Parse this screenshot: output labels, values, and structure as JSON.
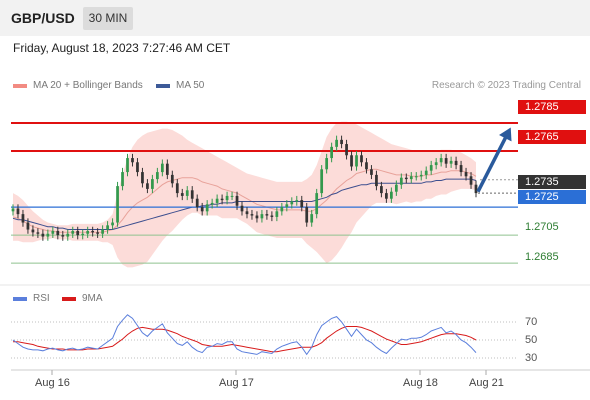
{
  "header": {
    "symbol": "GBP/USD",
    "timeframe": "30 MIN"
  },
  "timestamp": "Friday, August 18, 2023 7:27:46 AM CET",
  "legend": {
    "ma20_label": "MA 20 + Bollinger Bands",
    "ma50_label": "MA 50",
    "credit": "Research © 2023 Trading Central",
    "rsi_label": "RSI",
    "rsi_ma_label": "9MA"
  },
  "colors": {
    "up": "#33994d",
    "down": "#333333",
    "band": "#fbd0cc",
    "ma20": "#e8a29a",
    "ma50": "#3d4f8f",
    "resistance": "#e01010",
    "support": "#2b6fd6",
    "target": "#2e7d32",
    "arrow": "#2a5a9c",
    "rsi": "#5b7fdc",
    "rsi_ma": "#d81b1b"
  },
  "price_labels": {
    "r2": "1.2785",
    "r1": "1.2765",
    "last": "1.2735",
    "pivot": "1.2725",
    "s1": "1.2705",
    "s2": "1.2685"
  },
  "rsi_levels": [
    "70",
    "50",
    "30"
  ],
  "x_labels": [
    "Aug 16",
    "Aug 17",
    "Aug 18",
    "Aug 21"
  ],
  "chart_data": {
    "type": "candlestick",
    "ylim": [
      1.2673,
      1.2805
    ],
    "xlabels": [
      "Aug 16",
      "Aug 17",
      "Aug 18",
      "Aug 21"
    ],
    "levels": {
      "resistance": [
        1.2785,
        1.2765
      ],
      "pivot": 1.2725,
      "support": [
        1.2705,
        1.2685
      ],
      "last": 1.2735
    },
    "closes": [
      1.2724,
      1.272,
      1.2714,
      1.2709,
      1.2707,
      1.2706,
      1.2704,
      1.2706,
      1.2708,
      1.2705,
      1.2704,
      1.2706,
      1.2708,
      1.2705,
      1.2706,
      1.2708,
      1.2707,
      1.2706,
      1.2709,
      1.2712,
      1.2714,
      1.274,
      1.275,
      1.276,
      1.2757,
      1.275,
      1.2742,
      1.2738,
      1.2745,
      1.275,
      1.2756,
      1.2748,
      1.2742,
      1.2735,
      1.2733,
      1.2737,
      1.2731,
      1.2725,
      1.2722,
      1.2727,
      1.2728,
      1.2731,
      1.273,
      1.2733,
      1.2733,
      1.2726,
      1.2722,
      1.272,
      1.2719,
      1.2717,
      1.272,
      1.2719,
      1.2718,
      1.2722,
      1.2725,
      1.2727,
      1.2729,
      1.273,
      1.2725,
      1.2714,
      1.272,
      1.2735,
      1.2752,
      1.276,
      1.2768,
      1.2773,
      1.277,
      1.2762,
      1.2754,
      1.2762,
      1.2757,
      1.2752,
      1.2748,
      1.274,
      1.2735,
      1.2731,
      1.2736,
      1.2741,
      1.2746,
      1.2745,
      1.2747,
      1.2747,
      1.2748,
      1.2751,
      1.2755,
      1.2757,
      1.276,
      1.2756,
      1.2758,
      1.2755,
      1.275,
      1.2747,
      1.2741,
      1.2735
    ],
    "opens": [
      1.2722,
      1.2724,
      1.272,
      1.2714,
      1.2709,
      1.2707,
      1.2706,
      1.2704,
      1.2706,
      1.2708,
      1.2705,
      1.2704,
      1.2706,
      1.2708,
      1.2705,
      1.2706,
      1.2708,
      1.2707,
      1.2706,
      1.2709,
      1.2712,
      1.2714,
      1.274,
      1.275,
      1.276,
      1.2757,
      1.275,
      1.2742,
      1.2738,
      1.2745,
      1.275,
      1.2756,
      1.2748,
      1.2742,
      1.2735,
      1.2733,
      1.2737,
      1.2731,
      1.2725,
      1.2722,
      1.2727,
      1.2728,
      1.2731,
      1.273,
      1.2733,
      1.2733,
      1.2726,
      1.2722,
      1.272,
      1.2719,
      1.2717,
      1.272,
      1.2719,
      1.2718,
      1.2722,
      1.2725,
      1.2727,
      1.2729,
      1.273,
      1.2725,
      1.2714,
      1.272,
      1.2735,
      1.2752,
      1.276,
      1.2768,
      1.2773,
      1.277,
      1.2762,
      1.2754,
      1.2762,
      1.2757,
      1.2752,
      1.2748,
      1.274,
      1.2735,
      1.2731,
      1.2736,
      1.2741,
      1.2746,
      1.2745,
      1.2747,
      1.2747,
      1.2748,
      1.2751,
      1.2755,
      1.2757,
      1.276,
      1.2756,
      1.2758,
      1.2755,
      1.275,
      1.2747,
      1.2741
    ],
    "ma20": [
      1.2718,
      1.2717,
      1.2715,
      1.2713,
      1.2711,
      1.271,
      1.2709,
      1.2708,
      1.2708,
      1.2707,
      1.2707,
      1.2707,
      1.2707,
      1.2707,
      1.2707,
      1.2707,
      1.2707,
      1.2707,
      1.2707,
      1.2708,
      1.2709,
      1.2712,
      1.2716,
      1.2721,
      1.2725,
      1.2728,
      1.273,
      1.2732,
      1.2735,
      1.2738,
      1.2741,
      1.2743,
      1.2744,
      1.2745,
      1.2746,
      1.2746,
      1.2746,
      1.2745,
      1.2743,
      1.2742,
      1.2741,
      1.274,
      1.2738,
      1.2737,
      1.2736,
      1.2735,
      1.2733,
      1.2731,
      1.2729,
      1.2727,
      1.2726,
      1.2725,
      1.2724,
      1.2723,
      1.2723,
      1.2723,
      1.2723,
      1.2723,
      1.2723,
      1.2722,
      1.2722,
      1.2724,
      1.2727,
      1.273,
      1.2734,
      1.2738,
      1.2741,
      1.2744,
      1.2746,
      1.2749,
      1.275,
      1.2751,
      1.2752,
      1.2752,
      1.2751,
      1.275,
      1.2749,
      1.2748,
      1.2748,
      1.2748,
      1.2747,
      1.2747,
      1.2747,
      1.2748,
      1.2748,
      1.2749,
      1.275,
      1.275,
      1.2751,
      1.2751,
      1.2751,
      1.275,
      1.2749,
      1.2747
    ],
    "bb_upper": [
      1.2735,
      1.2733,
      1.273,
      1.2726,
      1.2722,
      1.2719,
      1.2716,
      1.2714,
      1.2713,
      1.2712,
      1.2712,
      1.2712,
      1.2713,
      1.2713,
      1.2713,
      1.2713,
      1.2713,
      1.2713,
      1.2714,
      1.2716,
      1.272,
      1.2735,
      1.2748,
      1.276,
      1.2768,
      1.2773,
      1.2776,
      1.2778,
      1.2779,
      1.278,
      1.2781,
      1.2781,
      1.278,
      1.2778,
      1.2776,
      1.2773,
      1.2771,
      1.2769,
      1.2767,
      1.2765,
      1.2763,
      1.2761,
      1.2759,
      1.2757,
      1.2755,
      1.2753,
      1.2751,
      1.2749,
      1.2748,
      1.2747,
      1.2746,
      1.2745,
      1.2744,
      1.2743,
      1.2743,
      1.2743,
      1.2743,
      1.2743,
      1.2743,
      1.2745,
      1.2748,
      1.2755,
      1.2765,
      1.2775,
      1.2781,
      1.2785,
      1.2786,
      1.2786,
      1.2785,
      1.2784,
      1.2782,
      1.278,
      1.2778,
      1.2776,
      1.2774,
      1.2772,
      1.277,
      1.2769,
      1.2768,
      1.2767,
      1.2766,
      1.2765,
      1.2765,
      1.2765,
      1.2765,
      1.2765,
      1.2766,
      1.2766,
      1.2766,
      1.2765,
      1.2764,
      1.2762,
      1.276,
      1.2757
    ],
    "bb_lower": [
      1.2701,
      1.2701,
      1.27,
      1.27,
      1.27,
      1.2701,
      1.2702,
      1.2702,
      1.2703,
      1.2702,
      1.2702,
      1.2702,
      1.2701,
      1.2701,
      1.2701,
      1.2701,
      1.2701,
      1.2701,
      1.27,
      1.27,
      1.2698,
      1.2689,
      1.2684,
      1.2682,
      1.2682,
      1.2683,
      1.2684,
      1.2686,
      1.2691,
      1.2696,
      1.2701,
      1.2705,
      1.2708,
      1.2712,
      1.2716,
      1.2719,
      1.2721,
      1.2721,
      1.2719,
      1.2719,
      1.2719,
      1.2719,
      1.2717,
      1.2717,
      1.2717,
      1.2717,
      1.2715,
      1.2713,
      1.271,
      1.2707,
      1.2706,
      1.2705,
      1.2704,
      1.2703,
      1.2703,
      1.2703,
      1.2703,
      1.2703,
      1.2703,
      1.2699,
      1.2696,
      1.2693,
      1.2689,
      1.2685,
      1.2687,
      1.2691,
      1.2696,
      1.2702,
      1.2707,
      1.2714,
      1.2718,
      1.2722,
      1.2726,
      1.2728,
      1.2728,
      1.2728,
      1.2728,
      1.2727,
      1.2728,
      1.2729,
      1.2728,
      1.2729,
      1.2729,
      1.2731,
      1.2731,
      1.2733,
      1.2734,
      1.2734,
      1.2736,
      1.2737,
      1.2738,
      1.2738,
      1.2738,
      1.2737
    ],
    "ma50": [
      1.2717,
      1.2716,
      1.2716,
      1.2715,
      1.2714,
      1.2713,
      1.2712,
      1.2711,
      1.2711,
      1.271,
      1.271,
      1.2709,
      1.2709,
      1.2709,
      1.2709,
      1.2709,
      1.2709,
      1.2709,
      1.2709,
      1.2709,
      1.2709,
      1.271,
      1.2711,
      1.2712,
      1.2713,
      1.2714,
      1.2715,
      1.2716,
      1.2717,
      1.2718,
      1.2719,
      1.272,
      1.2721,
      1.2722,
      1.2723,
      1.2724,
      1.2725,
      1.2725,
      1.2726,
      1.2726,
      1.2727,
      1.2727,
      1.2728,
      1.2728,
      1.2728,
      1.2729,
      1.2729,
      1.2729,
      1.2729,
      1.2729,
      1.2729,
      1.2729,
      1.2729,
      1.2729,
      1.2729,
      1.2729,
      1.2729,
      1.2729,
      1.2729,
      1.2729,
      1.2729,
      1.273,
      1.2731,
      1.2732,
      1.2734,
      1.2735,
      1.2737,
      1.2738,
      1.2739,
      1.274,
      1.2741,
      1.2741,
      1.2742,
      1.2742,
      1.2742,
      1.2742,
      1.2742,
      1.2742,
      1.2742,
      1.2742,
      1.2742,
      1.2742,
      1.2742,
      1.2743,
      1.2743,
      1.2744,
      1.2744,
      1.2745,
      1.2745,
      1.2745,
      1.2745,
      1.2745,
      1.2745,
      1.2744
    ],
    "rsi": [
      50,
      46,
      42,
      40,
      39,
      39,
      38,
      40,
      41,
      39,
      38,
      40,
      41,
      39,
      40,
      42,
      41,
      40,
      44,
      48,
      52,
      65,
      72,
      78,
      74,
      66,
      58,
      54,
      60,
      64,
      68,
      58,
      52,
      46,
      44,
      48,
      42,
      38,
      36,
      42,
      43,
      46,
      45,
      48,
      48,
      40,
      37,
      36,
      35,
      34,
      37,
      36,
      35,
      40,
      43,
      45,
      47,
      48,
      42,
      34,
      42,
      56,
      66,
      70,
      74,
      76,
      70,
      62,
      54,
      62,
      56,
      50,
      47,
      42,
      38,
      35,
      41,
      46,
      51,
      50,
      52,
      52,
      53,
      56,
      60,
      62,
      64,
      58,
      60,
      56,
      50,
      47,
      42,
      36
    ],
    "rsi_ma": [
      48,
      48,
      47,
      46,
      45,
      43,
      42,
      41,
      40,
      40,
      40,
      39,
      39,
      39,
      39,
      40,
      40,
      40,
      41,
      42,
      43,
      47,
      51,
      56,
      60,
      63,
      64,
      63,
      62,
      62,
      62,
      61,
      59,
      57,
      54,
      52,
      50,
      48,
      45,
      44,
      43,
      43,
      43,
      44,
      45,
      44,
      43,
      42,
      41,
      40,
      39,
      38,
      37,
      37,
      38,
      39,
      40,
      41,
      42,
      42,
      42,
      44,
      47,
      52,
      56,
      60,
      63,
      65,
      65,
      65,
      64,
      62,
      60,
      57,
      54,
      51,
      49,
      47,
      45,
      45,
      46,
      47,
      48,
      50,
      52,
      54,
      56,
      57,
      57,
      57,
      56,
      55,
      53,
      50
    ]
  }
}
